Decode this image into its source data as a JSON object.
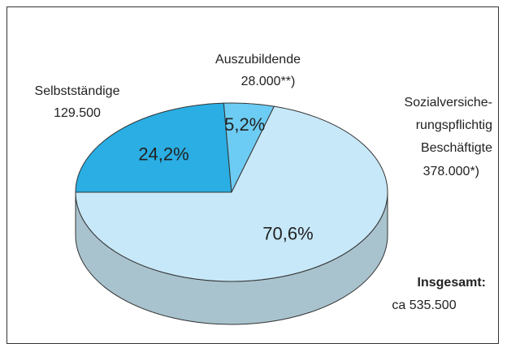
{
  "chart_data": {
    "type": "pie",
    "categories": [
      "Selbstständige",
      "Auszubildende",
      "Sozialversiche-\nrungspflichtig\nBeschäftigte"
    ],
    "values": [
      24.2,
      5.2,
      70.6
    ],
    "value_labels": [
      "24,2%",
      "5,2%",
      "70,6%"
    ],
    "counts": [
      129500,
      28000,
      378000
    ],
    "count_labels": [
      "129.500",
      "28.000**)",
      "378.000*)"
    ],
    "colors": [
      "#2aaee3",
      "#6dccf3",
      "#c7e8f8"
    ],
    "side_color": "#a8c3ce",
    "total_title": "Insgesamt:",
    "total_label": "ca 535.500"
  }
}
